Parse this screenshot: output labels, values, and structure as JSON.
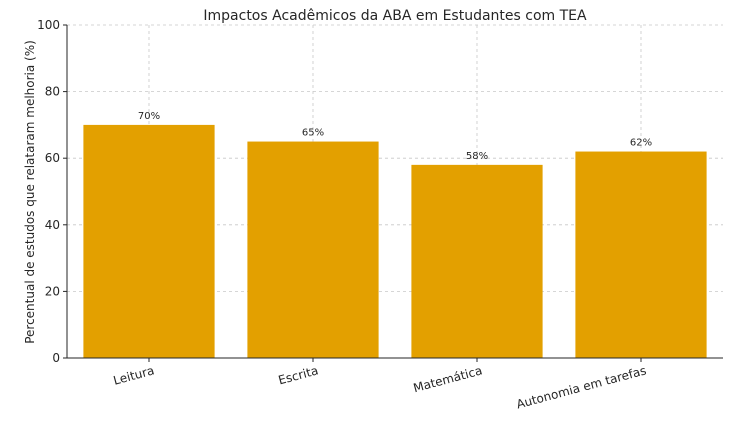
{
  "chart_data": {
    "type": "bar",
    "title": "Impactos Acadêmicos da ABA em Estudantes com TEA",
    "xlabel": "",
    "ylabel": "Percentual de estudos que relataram melhoria (%)",
    "categories": [
      "Leitura",
      "Escrita",
      "Matemática",
      "Autonomia em tarefas"
    ],
    "values": [
      70,
      65,
      58,
      62
    ],
    "data_labels": [
      "70%",
      "65%",
      "58%",
      "62%"
    ],
    "ylim": [
      0,
      100
    ],
    "yticks": [
      0,
      20,
      40,
      60,
      80,
      100
    ],
    "grid": true,
    "bar_color": "#E3A000"
  }
}
